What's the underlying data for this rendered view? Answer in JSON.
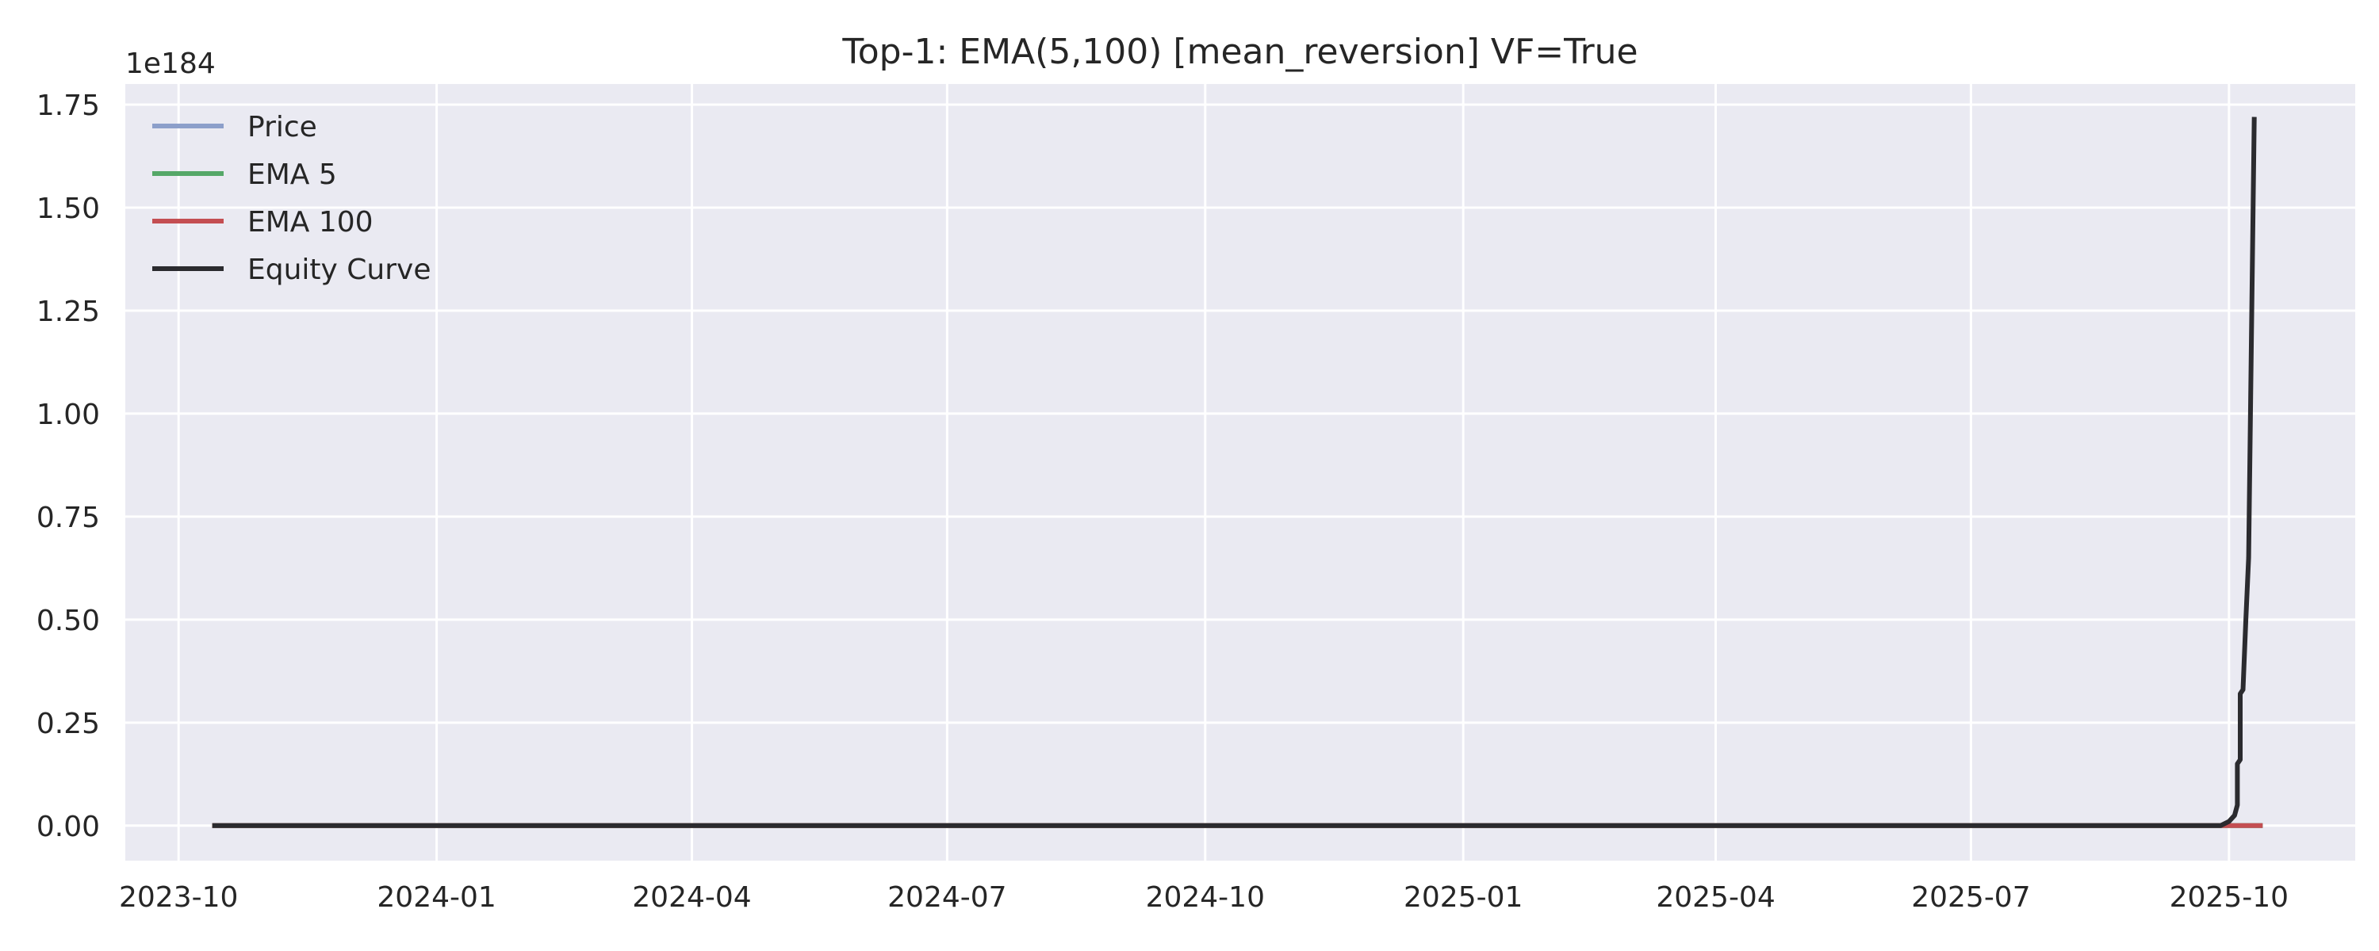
{
  "chart_data": {
    "type": "line",
    "title": "Top-1: EMA(5,100) [mean_reversion] VF=True",
    "xlabel": "",
    "ylabel": "",
    "y_offset_label": "1e184",
    "x_ticks": [
      "2023-10",
      "2024-01",
      "2024-04",
      "2024-07",
      "2024-10",
      "2025-01",
      "2025-04",
      "2025-07",
      "2025-10"
    ],
    "y_ticks": [
      "0.00",
      "0.25",
      "0.50",
      "0.75",
      "1.00",
      "1.25",
      "1.50",
      "1.75"
    ],
    "x_range": [
      "2023-09-12",
      "2025-11-15"
    ],
    "y_range_scaled": [
      -0.085,
      1.8
    ],
    "y_scale_exponent": 184,
    "grid": true,
    "background": "#EAEAF2",
    "legend_position": "top-left",
    "series": [
      {
        "name": "Price",
        "color": "#8C9FCA",
        "points": [
          [
            "2023-10-13",
            0
          ],
          [
            "2025-10-13",
            0
          ]
        ]
      },
      {
        "name": "EMA 5",
        "color": "#55A868",
        "points": [
          [
            "2023-10-13",
            0
          ],
          [
            "2025-10-13",
            0
          ]
        ]
      },
      {
        "name": "EMA 100",
        "color": "#C44E52",
        "points": [
          [
            "2023-10-13",
            0
          ],
          [
            "2025-10-13",
            0
          ]
        ]
      },
      {
        "name": "Equity Curve",
        "color": "#2B2B2F",
        "points": [
          [
            "2023-10-13",
            0
          ],
          [
            "2025-09-28",
            0
          ],
          [
            "2025-10-01",
            0.01
          ],
          [
            "2025-10-03",
            0.025
          ],
          [
            "2025-10-04",
            0.05
          ],
          [
            "2025-10-04",
            0.15
          ],
          [
            "2025-10-05",
            0.16
          ],
          [
            "2025-10-05",
            0.32
          ],
          [
            "2025-10-06",
            0.33
          ],
          [
            "2025-10-07",
            0.5
          ],
          [
            "2025-10-08",
            0.65
          ],
          [
            "2025-10-09",
            1.18
          ],
          [
            "2025-10-10",
            1.72
          ]
        ]
      }
    ]
  }
}
